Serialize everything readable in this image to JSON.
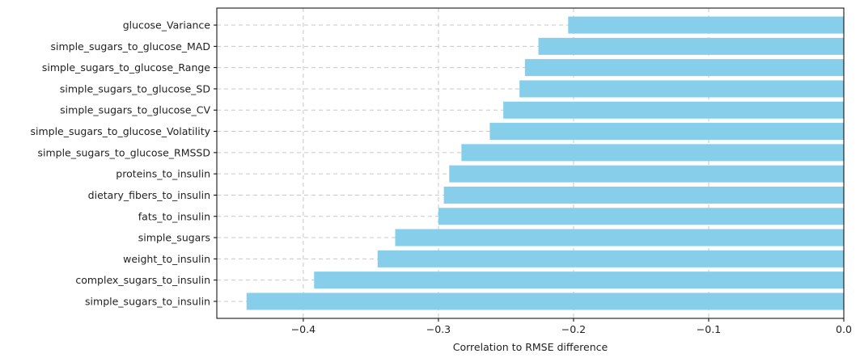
{
  "chart_data": {
    "type": "bar",
    "orientation": "horizontal",
    "categories": [
      "glucose_Variance",
      "simple_sugars_to_glucose_MAD",
      "simple_sugars_to_glucose_Range",
      "simple_sugars_to_glucose_SD",
      "simple_sugars_to_glucose_CV",
      "simple_sugars_to_glucose_Volatility",
      "simple_sugars_to_glucose_RMSSD",
      "proteins_to_insulin",
      "dietary_fibers_to_insulin",
      "fats_to_insulin",
      "simple_sugars",
      "weight_to_insulin",
      "complex_sugars_to_insulin",
      "simple_sugars_to_insulin"
    ],
    "values": [
      -0.204,
      -0.226,
      -0.236,
      -0.24,
      -0.252,
      -0.262,
      -0.283,
      -0.292,
      -0.296,
      -0.3,
      -0.332,
      -0.345,
      -0.392,
      -0.442
    ],
    "xlabel": "Correlation to RMSE difference",
    "ylabel": "",
    "xlim": [
      -0.464,
      0.0
    ],
    "xticks": [
      -0.4,
      -0.3,
      -0.2,
      -0.1,
      0.0
    ],
    "xtick_labels": [
      "−0.4",
      "−0.3",
      "−0.2",
      "−0.1",
      "0.0"
    ],
    "grid": true,
    "bar_color": "#87CEEB"
  }
}
